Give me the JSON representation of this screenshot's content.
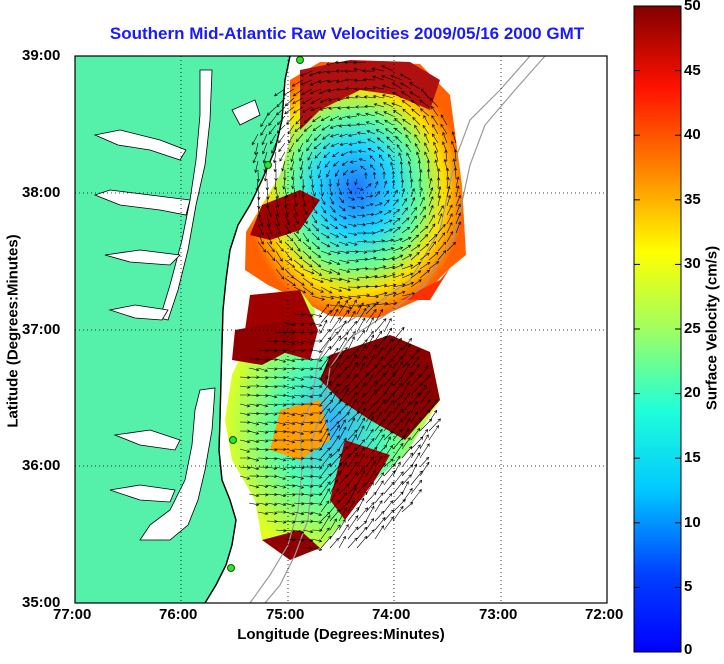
{
  "map": {
    "title": "Southern Mid-Atlantic Raw Velocities 2009/05/16 2000 GMT",
    "x_axis": {
      "label": "Longitude (Degrees:Minutes)",
      "ticks": [
        "77:00",
        "76:00",
        "75:00",
        "74:00",
        "73:00",
        "72:00"
      ],
      "range": [
        -77,
        -72
      ]
    },
    "y_axis": {
      "label": "Latitude (Degrees:Minutes)",
      "ticks": [
        "39:00",
        "38:00",
        "37:00",
        "36:00",
        "35:00"
      ],
      "range": [
        35,
        39
      ]
    },
    "colorbar": {
      "label": "Surface Velocity (cm/s)",
      "ticks": [
        "0",
        "5",
        "10",
        "15",
        "20",
        "25",
        "30",
        "35",
        "40",
        "45",
        "50"
      ],
      "range": [
        0,
        50
      ]
    },
    "colors": {
      "land": "#55f0aa",
      "water": "#ffffff",
      "title": "#1a1aff",
      "arrows": "#000000"
    },
    "grid": "dotted"
  }
}
